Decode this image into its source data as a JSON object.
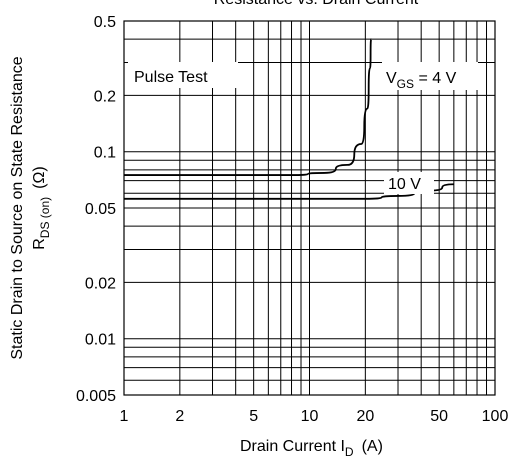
{
  "chart_data": {
    "type": "line",
    "title": "Resistance vs. Drain Current",
    "xlabel": "Drain Current  I",
    "xlabel_sub": "D",
    "xlabel_unit": "(A)",
    "ylabel_line1": "Static Drain to Source on State Resistance",
    "ylabel_line2_main": "R",
    "ylabel_line2_sub": "DS (on)",
    "ylabel_line2_unit": "(Ω)",
    "x_scale": "log",
    "y_scale": "log",
    "xlim": [
      1,
      100
    ],
    "ylim": [
      0.005,
      0.5
    ],
    "x_ticks": [
      {
        "v": 1,
        "label": "1"
      },
      {
        "v": 2,
        "label": "2"
      },
      {
        "v": 5,
        "label": "5"
      },
      {
        "v": 10,
        "label": "10"
      },
      {
        "v": 20,
        "label": "20"
      },
      {
        "v": 50,
        "label": "50"
      },
      {
        "v": 100,
        "label": "100"
      }
    ],
    "y_ticks": [
      {
        "v": 0.005,
        "label": "0.005"
      },
      {
        "v": 0.01,
        "label": "0.01"
      },
      {
        "v": 0.02,
        "label": "0.02"
      },
      {
        "v": 0.05,
        "label": "0.05"
      },
      {
        "v": 0.1,
        "label": "0.1"
      },
      {
        "v": 0.2,
        "label": "0.2"
      },
      {
        "v": 0.5,
        "label": "0.5"
      }
    ],
    "grid": true,
    "annotation": "Pulse Test",
    "series": [
      {
        "label_main": "V",
        "label_sub": "GS",
        "label_rest": " = 4 V",
        "points": [
          [
            1,
            0.075
          ],
          [
            8,
            0.075
          ],
          [
            12,
            0.077
          ],
          [
            16,
            0.085
          ],
          [
            19,
            0.11
          ],
          [
            20.5,
            0.17
          ],
          [
            21.2,
            0.28
          ],
          [
            21.5,
            0.4
          ]
        ]
      },
      {
        "label": "10 V",
        "points": [
          [
            1,
            0.056
          ],
          [
            20,
            0.056
          ],
          [
            30,
            0.058
          ],
          [
            45,
            0.062
          ],
          [
            60,
            0.067
          ]
        ]
      }
    ]
  }
}
